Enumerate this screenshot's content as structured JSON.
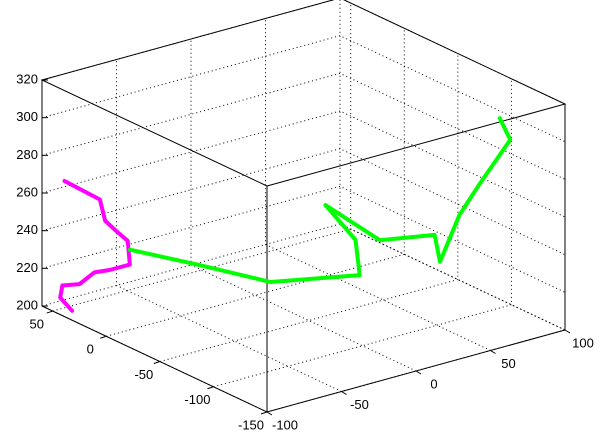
{
  "chart_data": {
    "type": "line3d",
    "xlim": [
      -100,
      100
    ],
    "ylim": [
      -150,
      60
    ],
    "zlim": [
      200,
      320
    ],
    "xticks": [
      -100,
      -50,
      0,
      50,
      100
    ],
    "yticks": [
      -150,
      -100,
      -50,
      0,
      50
    ],
    "zticks": [
      200,
      220,
      240,
      260,
      280,
      300,
      320
    ],
    "grid": true,
    "series": [
      {
        "color": "#ff00ff",
        "x": [
          -100,
          -100,
          -100,
          -100,
          -100,
          -100,
          -100,
          -100,
          -100,
          -100,
          -100,
          -100
        ],
        "y": [
          39,
          6,
          1,
          -11,
          -20,
          -22,
          -3,
          11,
          25,
          41,
          43,
          32
        ],
        "z": [
          272,
          271,
          261,
          258,
          256,
          244,
          236,
          231,
          221,
          216,
          209,
          205
        ]
      },
      {
        "color": "#00ff00",
        "x": [
          -46,
          -22,
          -7,
          37,
          50,
          60,
          60,
          88,
          83,
          91,
          84,
          87,
          85
        ],
        "y": [
          53,
          22,
          -24,
          -46,
          -24,
          18,
          -33,
          -45,
          -57,
          -64,
          -92,
          -117,
          -110
        ],
        "z": [
          220,
          215,
          215,
          215,
          225,
          230,
          225,
          225,
          215,
          240,
          265,
          295,
          305
        ]
      }
    ]
  }
}
